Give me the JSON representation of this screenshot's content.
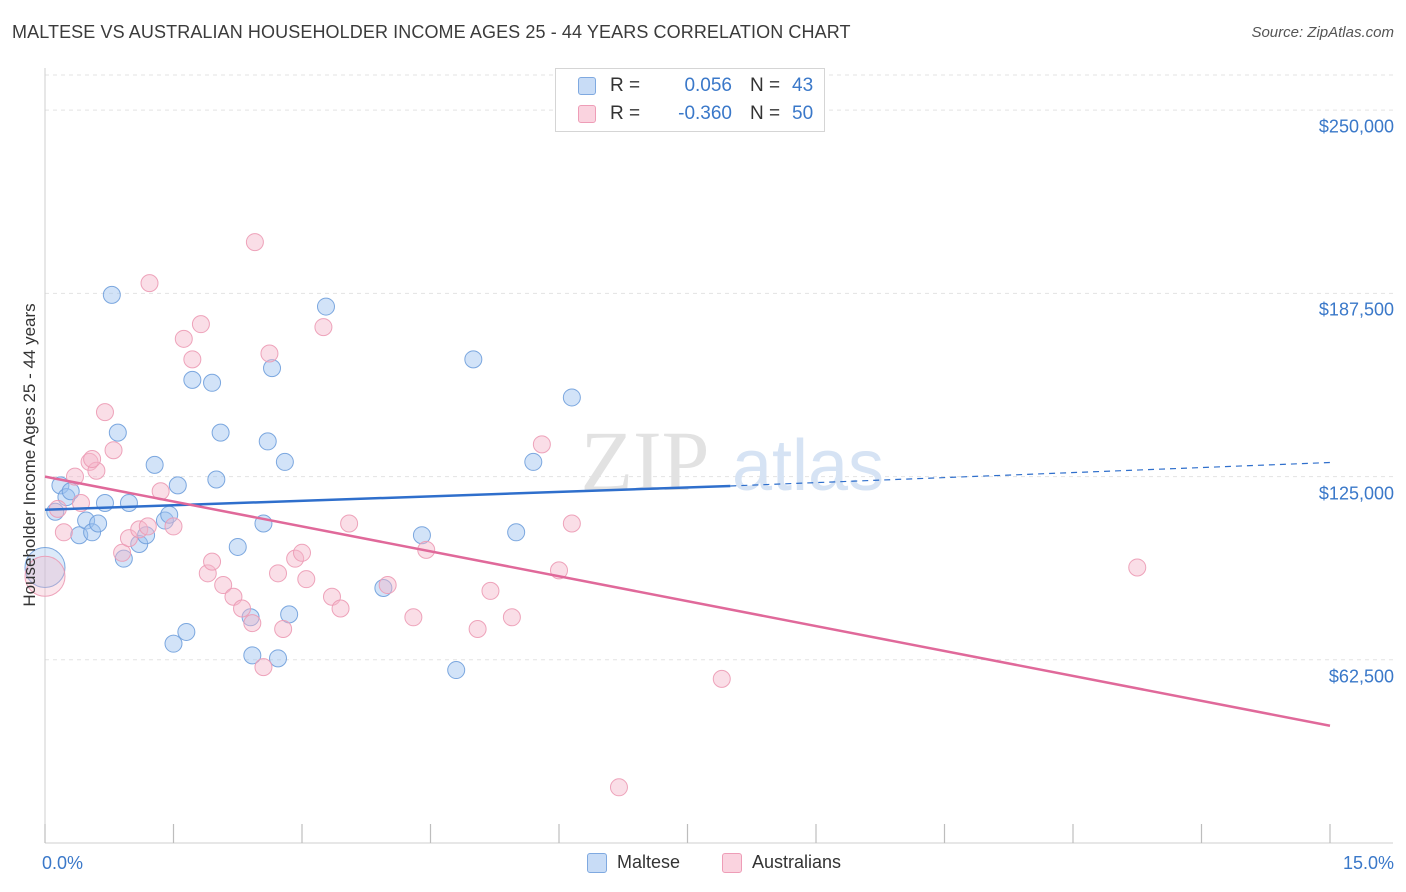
{
  "title": "MALTESE VS AUSTRALIAN HOUSEHOLDER INCOME AGES 25 - 44 YEARS CORRELATION CHART",
  "source": "Source: ZipAtlas.com",
  "watermark": {
    "zip": "ZIP",
    "atlas": "atlas"
  },
  "legend": {
    "rows": [
      {
        "r_label": "R =",
        "r_value": "0.056",
        "n_label": "N =",
        "n_value": "43",
        "color": "#9cc2ef"
      },
      {
        "r_label": "R =",
        "r_value": "-0.360",
        "n_label": "N =",
        "n_value": "50",
        "color": "#f4b6c9"
      }
    ]
  },
  "bottom_legend": [
    {
      "label": "Maltese",
      "color": "#9cc2ef"
    },
    {
      "label": "Australians",
      "color": "#f4b6c9"
    }
  ],
  "chart_data": {
    "type": "scatter",
    "title": "MALTESE VS AUSTRALIAN HOUSEHOLDER INCOME AGES 25 - 44 YEARS CORRELATION CHART",
    "xlabel": "",
    "ylabel": "Householder Income Ages 25 - 44 years",
    "xlim": [
      0,
      15
    ],
    "ylim": [
      0,
      262000
    ],
    "x_tick_labels": [
      "0.0%",
      "15.0%"
    ],
    "y_ticks": [
      62500,
      125000,
      187500,
      250000
    ],
    "y_tick_labels": [
      "$62,500",
      "$125,000",
      "$187,500",
      "$250,000"
    ],
    "grid": true,
    "legend_position": "top-center",
    "series": [
      {
        "name": "Maltese",
        "color": "#9cc2ef",
        "line_color": "#2f6fcc",
        "trend": {
          "x0": 0,
          "y0": 113700,
          "x1": 8.0,
          "y1": 121800,
          "dash_to_x": 15,
          "dash_to_y": 129800
        },
        "points": [
          {
            "x": 0.0,
            "y": 94000,
            "big": true
          },
          {
            "x": 0.12,
            "y": 113000
          },
          {
            "x": 0.18,
            "y": 122000
          },
          {
            "x": 0.25,
            "y": 118000
          },
          {
            "x": 0.3,
            "y": 120000
          },
          {
            "x": 0.4,
            "y": 105000
          },
          {
            "x": 0.48,
            "y": 110000
          },
          {
            "x": 0.55,
            "y": 106000
          },
          {
            "x": 0.62,
            "y": 109000
          },
          {
            "x": 0.7,
            "y": 116000
          },
          {
            "x": 0.78,
            "y": 187000
          },
          {
            "x": 0.85,
            "y": 140000
          },
          {
            "x": 0.92,
            "y": 97000
          },
          {
            "x": 0.98,
            "y": 116000
          },
          {
            "x": 1.1,
            "y": 102000
          },
          {
            "x": 1.18,
            "y": 105000
          },
          {
            "x": 1.28,
            "y": 129000
          },
          {
            "x": 1.4,
            "y": 110000
          },
          {
            "x": 1.5,
            "y": 68000
          },
          {
            "x": 1.55,
            "y": 122000
          },
          {
            "x": 1.65,
            "y": 72000
          },
          {
            "x": 1.72,
            "y": 158000
          },
          {
            "x": 1.95,
            "y": 157000
          },
          {
            "x": 2.0,
            "y": 124000
          },
          {
            "x": 2.05,
            "y": 140000
          },
          {
            "x": 2.25,
            "y": 101000
          },
          {
            "x": 2.4,
            "y": 77000
          },
          {
            "x": 2.42,
            "y": 64000
          },
          {
            "x": 2.55,
            "y": 109000
          },
          {
            "x": 2.6,
            "y": 137000
          },
          {
            "x": 2.65,
            "y": 162000
          },
          {
            "x": 2.72,
            "y": 63000
          },
          {
            "x": 2.8,
            "y": 130000
          },
          {
            "x": 2.85,
            "y": 78000
          },
          {
            "x": 3.28,
            "y": 183000
          },
          {
            "x": 3.95,
            "y": 87000
          },
          {
            "x": 4.4,
            "y": 105000
          },
          {
            "x": 4.8,
            "y": 59000
          },
          {
            "x": 5.0,
            "y": 165000
          },
          {
            "x": 5.5,
            "y": 106000
          },
          {
            "x": 5.7,
            "y": 130000
          },
          {
            "x": 6.15,
            "y": 152000
          },
          {
            "x": 1.45,
            "y": 112000
          }
        ]
      },
      {
        "name": "Australians",
        "color": "#f4b6c9",
        "line_color": "#e0699a",
        "trend": {
          "x0": 0,
          "y0": 125000,
          "x1": 15,
          "y1": 40000
        },
        "points": [
          {
            "x": 0.0,
            "y": 91000,
            "big": true
          },
          {
            "x": 0.15,
            "y": 114000
          },
          {
            "x": 0.22,
            "y": 106000
          },
          {
            "x": 0.35,
            "y": 125000
          },
          {
            "x": 0.42,
            "y": 116000
          },
          {
            "x": 0.52,
            "y": 130000
          },
          {
            "x": 0.6,
            "y": 127000
          },
          {
            "x": 0.7,
            "y": 147000
          },
          {
            "x": 0.8,
            "y": 134000
          },
          {
            "x": 0.9,
            "y": 99000
          },
          {
            "x": 0.98,
            "y": 104000
          },
          {
            "x": 1.1,
            "y": 107000
          },
          {
            "x": 1.2,
            "y": 108000
          },
          {
            "x": 1.22,
            "y": 191000
          },
          {
            "x": 1.35,
            "y": 120000
          },
          {
            "x": 1.5,
            "y": 108000
          },
          {
            "x": 1.62,
            "y": 172000
          },
          {
            "x": 1.72,
            "y": 165000
          },
          {
            "x": 1.82,
            "y": 177000
          },
          {
            "x": 1.9,
            "y": 92000
          },
          {
            "x": 1.95,
            "y": 96000
          },
          {
            "x": 2.08,
            "y": 88000
          },
          {
            "x": 2.2,
            "y": 84000
          },
          {
            "x": 2.3,
            "y": 80000
          },
          {
            "x": 2.42,
            "y": 75000
          },
          {
            "x": 2.45,
            "y": 205000
          },
          {
            "x": 2.55,
            "y": 60000
          },
          {
            "x": 2.62,
            "y": 167000
          },
          {
            "x": 2.72,
            "y": 92000
          },
          {
            "x": 2.78,
            "y": 73000
          },
          {
            "x": 2.92,
            "y": 97000
          },
          {
            "x": 3.0,
            "y": 99000
          },
          {
            "x": 3.05,
            "y": 90000
          },
          {
            "x": 3.25,
            "y": 176000
          },
          {
            "x": 3.35,
            "y": 84000
          },
          {
            "x": 3.45,
            "y": 80000
          },
          {
            "x": 3.55,
            "y": 109000
          },
          {
            "x": 4.0,
            "y": 88000
          },
          {
            "x": 4.3,
            "y": 77000
          },
          {
            "x": 4.45,
            "y": 100000
          },
          {
            "x": 5.05,
            "y": 73000
          },
          {
            "x": 5.2,
            "y": 86000
          },
          {
            "x": 5.45,
            "y": 77000
          },
          {
            "x": 5.8,
            "y": 136000
          },
          {
            "x": 6.0,
            "y": 93000
          },
          {
            "x": 6.15,
            "y": 109000
          },
          {
            "x": 6.7,
            "y": 19000
          },
          {
            "x": 7.9,
            "y": 56000
          },
          {
            "x": 12.75,
            "y": 94000
          },
          {
            "x": 0.55,
            "y": 131000
          }
        ]
      }
    ]
  }
}
